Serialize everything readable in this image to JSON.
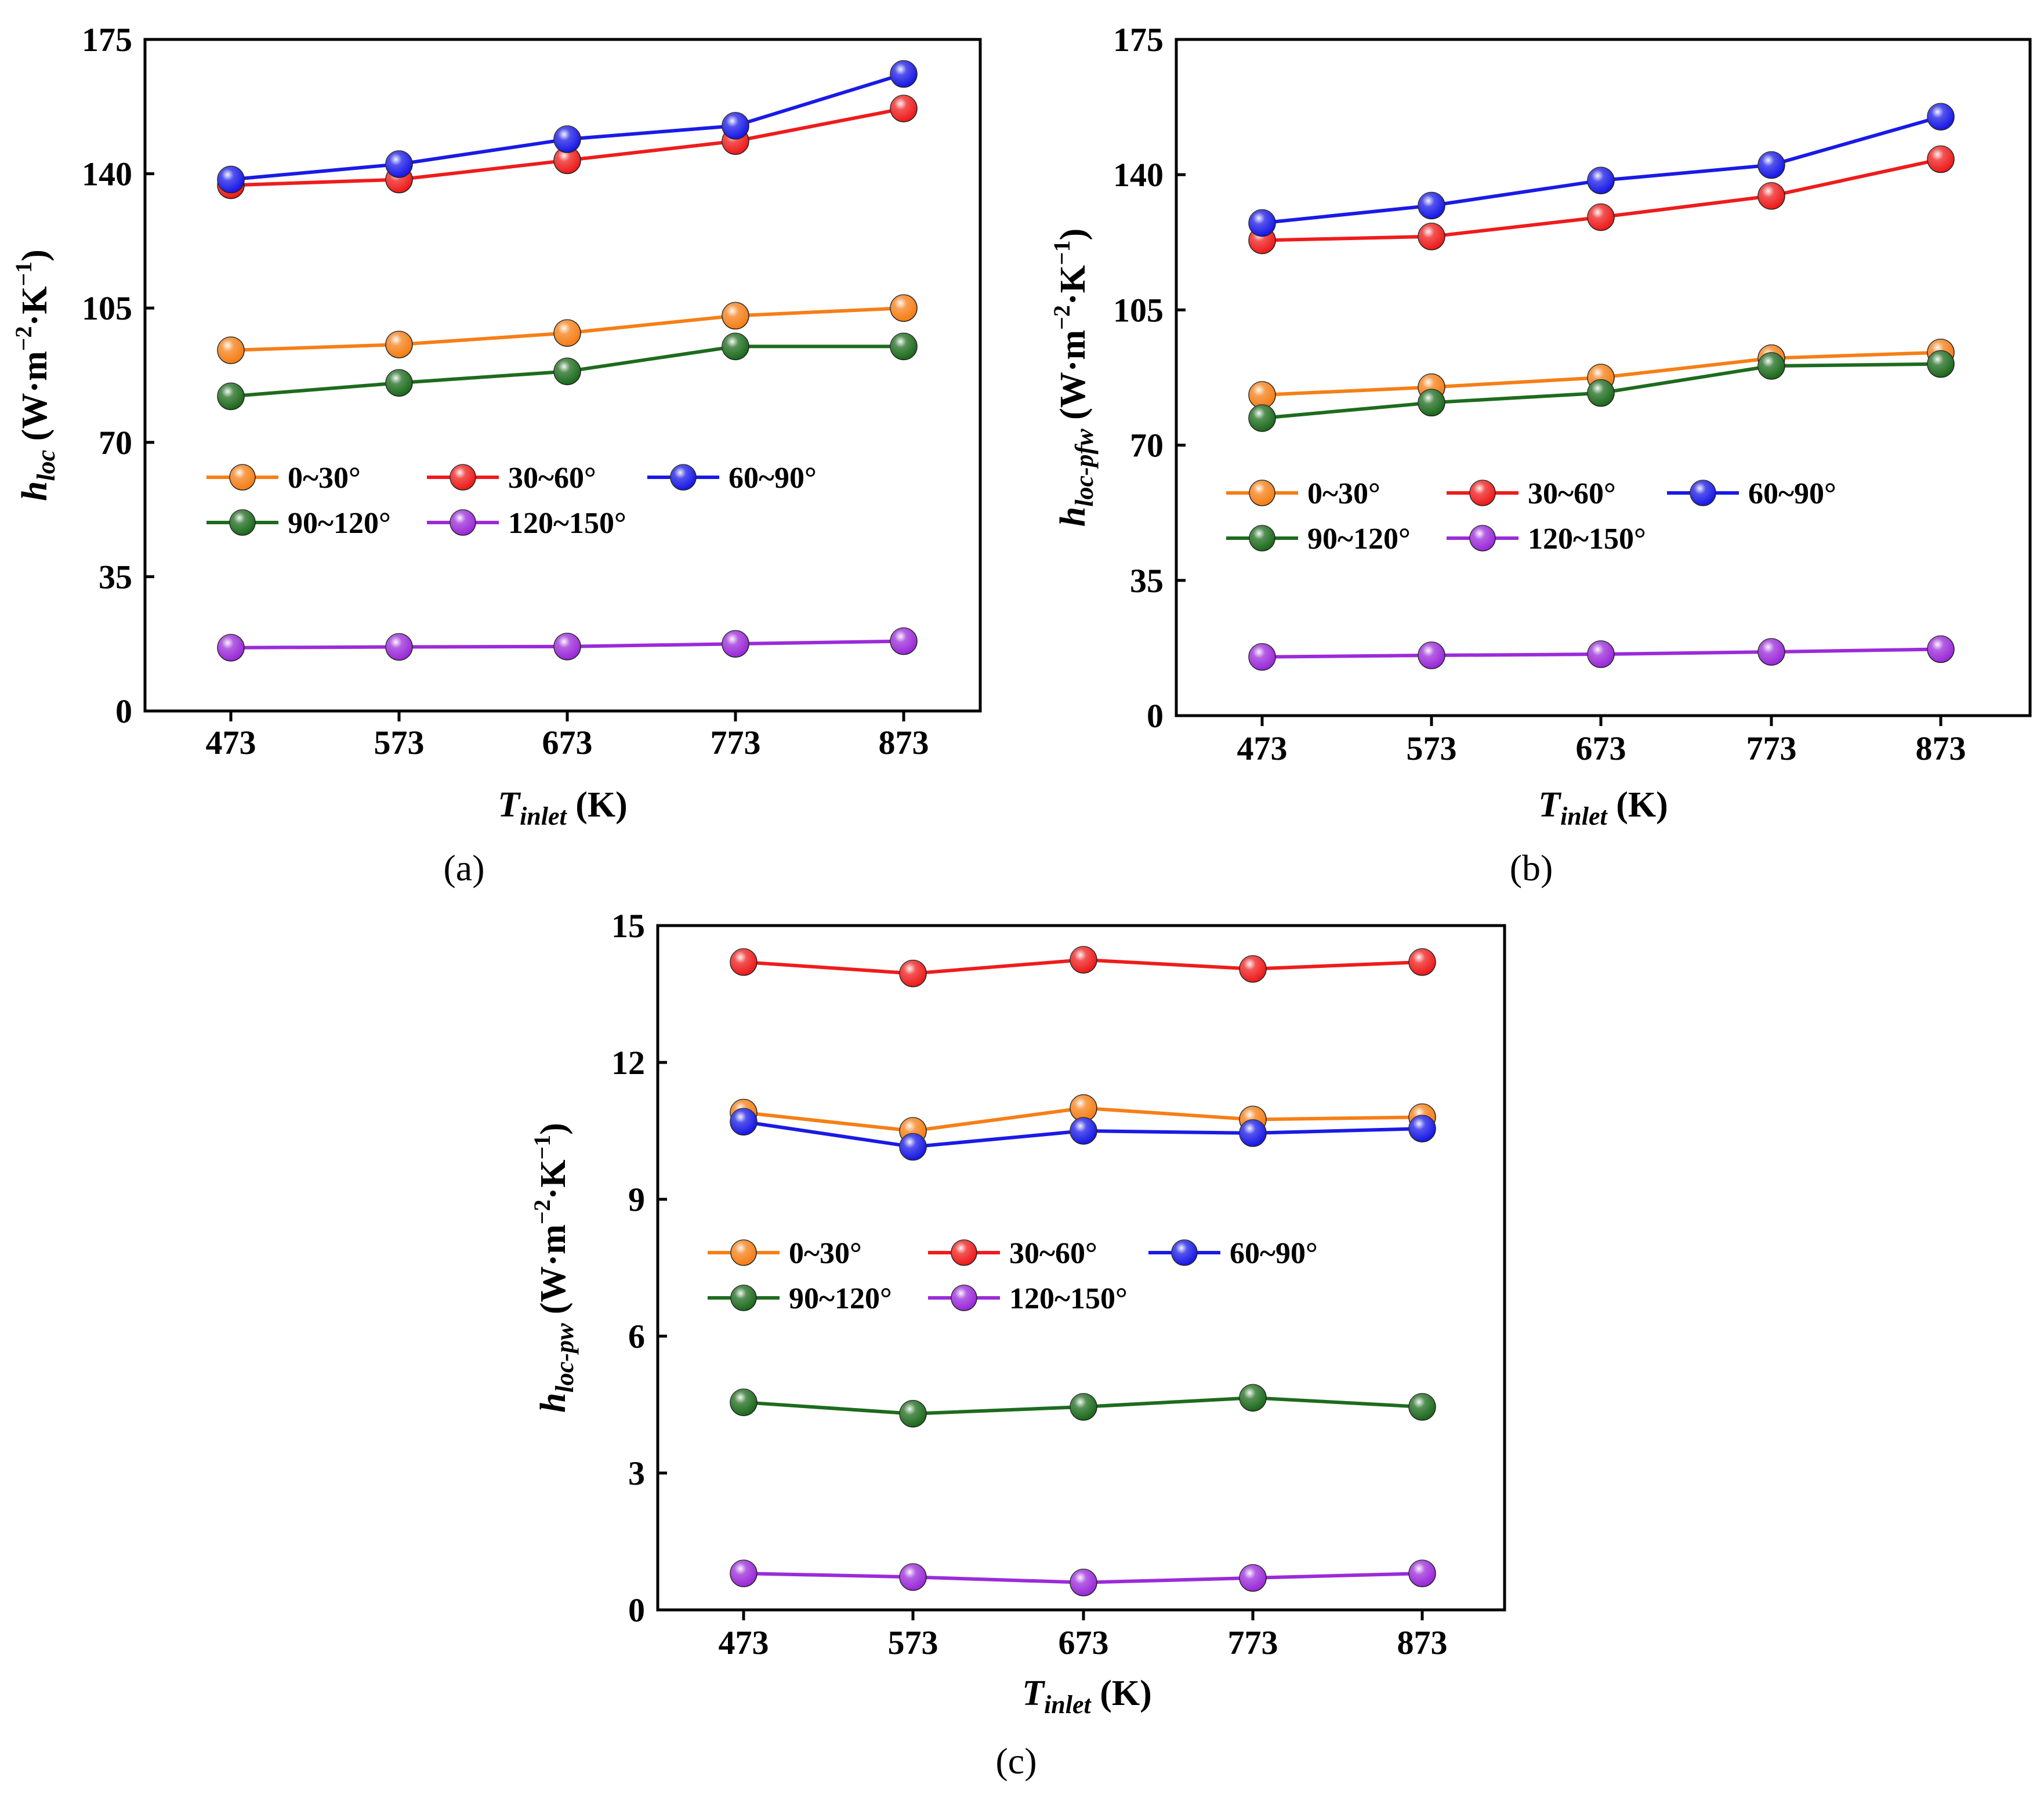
{
  "figure_labels": {
    "a": "(a)",
    "b": "(b)",
    "c": "(c)"
  },
  "chart_data": [
    {
      "panel": "a",
      "panel_label": "(a)",
      "type": "line",
      "xlabel": {
        "main": "T",
        "sub": "inlet",
        "unit": " (K)"
      },
      "ylabel": {
        "main": "h",
        "sub": "loc",
        "unit": " (W·m",
        "exp1": "−2",
        "mid": "·K",
        "exp2": "−1",
        "end": ")"
      },
      "categories": [
        "473",
        "573",
        "673",
        "773",
        "873"
      ],
      "ylim": [
        0,
        175
      ],
      "yticks": [
        "0",
        "35",
        "70",
        "105",
        "140",
        "175"
      ],
      "series": [
        {
          "name": "0~30°",
          "color": "#f57f17",
          "values": [
            94,
            95.5,
            98.5,
            103,
            105
          ]
        },
        {
          "name": "30~60°",
          "color": "#ee1c1c",
          "values": [
            137,
            138.5,
            143.5,
            148.5,
            157
          ]
        },
        {
          "name": "60~90°",
          "color": "#1a1ae6",
          "values": [
            138.5,
            142.5,
            149,
            152.5,
            166
          ]
        },
        {
          "name": "90~120°",
          "color": "#1e6b1e",
          "values": [
            82,
            85.5,
            88.5,
            95,
            95
          ]
        },
        {
          "name": "120~150°",
          "color": "#9b2bd9",
          "values": [
            16.5,
            16.7,
            16.8,
            17.5,
            18.2
          ]
        }
      ]
    },
    {
      "panel": "b",
      "panel_label": "(b)",
      "type": "line",
      "xlabel": {
        "main": "T",
        "sub": "inlet",
        "unit": " (K)"
      },
      "ylabel": {
        "main": "h",
        "sub": "loc-pfw",
        "unit": " (W·m",
        "exp1": "−2",
        "mid": "·K",
        "exp2": "−1",
        "end": ")"
      },
      "categories": [
        "473",
        "573",
        "673",
        "773",
        "873"
      ],
      "ylim": [
        0,
        175
      ],
      "yticks": [
        "0",
        "35",
        "70",
        "105",
        "140",
        "175"
      ],
      "series": [
        {
          "name": "0~30°",
          "color": "#f57f17",
          "values": [
            83,
            85,
            87.5,
            92.5,
            94
          ]
        },
        {
          "name": "30~60°",
          "color": "#ee1c1c",
          "values": [
            123,
            124,
            129,
            134.5,
            144
          ]
        },
        {
          "name": "60~90°",
          "color": "#1a1ae6",
          "values": [
            127.5,
            132,
            138.5,
            142.5,
            155
          ]
        },
        {
          "name": "90~120°",
          "color": "#1e6b1e",
          "values": [
            77,
            81,
            83.5,
            90.5,
            91
          ]
        },
        {
          "name": "120~150°",
          "color": "#9b2bd9",
          "values": [
            15.2,
            15.6,
            15.9,
            16.5,
            17.2
          ]
        }
      ]
    },
    {
      "panel": "c",
      "panel_label": "(c)",
      "type": "line",
      "xlabel": {
        "main": "T",
        "sub": "inlet",
        "unit": " (K)"
      },
      "ylabel": {
        "main": "h",
        "sub": "loc-pw",
        "unit": " (W·m",
        "exp1": "−2",
        "mid": "·K",
        "exp2": "−1",
        "end": ")"
      },
      "categories": [
        "473",
        "573",
        "673",
        "773",
        "873"
      ],
      "ylim": [
        0,
        15
      ],
      "yticks": [
        "0",
        "3",
        "6",
        "9",
        "12",
        "15"
      ],
      "series": [
        {
          "name": "0~30°",
          "color": "#f57f17",
          "values": [
            10.9,
            10.5,
            11.0,
            10.75,
            10.8
          ]
        },
        {
          "name": "30~60°",
          "color": "#ee1c1c",
          "values": [
            14.2,
            13.95,
            14.25,
            14.05,
            14.2
          ]
        },
        {
          "name": "60~90°",
          "color": "#1a1ae6",
          "values": [
            10.7,
            10.15,
            10.5,
            10.45,
            10.55
          ]
        },
        {
          "name": "90~120°",
          "color": "#1e6b1e",
          "values": [
            4.55,
            4.3,
            4.45,
            4.65,
            4.45
          ]
        },
        {
          "name": "120~150°",
          "color": "#9b2bd9",
          "values": [
            0.8,
            0.72,
            0.6,
            0.7,
            0.8
          ]
        }
      ]
    }
  ]
}
